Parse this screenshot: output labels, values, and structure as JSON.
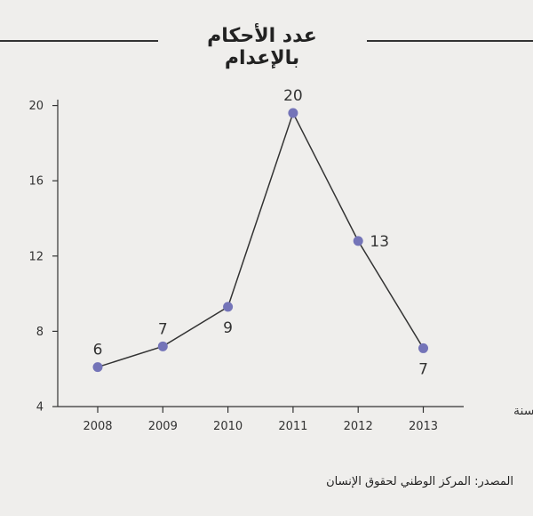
{
  "title": "عدد الأحكام بالإعدام",
  "source": "المصدر: المركز الوطني لحقوق الإنسان",
  "chart_data": {
    "type": "line",
    "title": "عدد الأحكام بالإعدام",
    "xlabel": "السنة",
    "ylabel": "",
    "x": [
      "2008",
      "2009",
      "2010",
      "2011",
      "2012",
      "2013"
    ],
    "series": [
      {
        "values": [
          6.1,
          7.2,
          9.3,
          19.6,
          12.8,
          7.1
        ],
        "labels": [
          "6",
          "7",
          "9",
          "20",
          "13",
          "7"
        ]
      }
    ],
    "yticks": [
      4,
      8,
      12,
      16,
      20
    ],
    "ylim": [
      4,
      21
    ],
    "grid": false,
    "legend": "none",
    "colors": {
      "line": "#333333",
      "marker": "#7474b8",
      "axis": "#333333",
      "background": "#efeeec"
    }
  }
}
